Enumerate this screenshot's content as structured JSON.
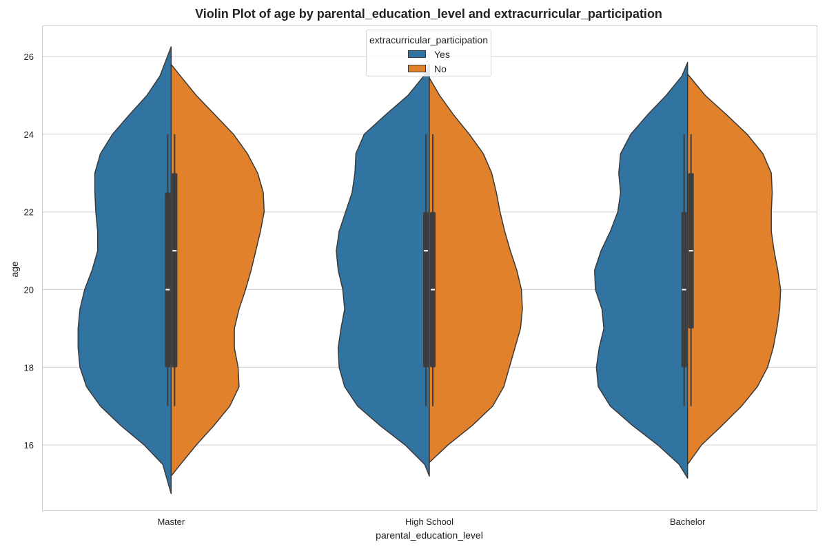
{
  "chart_data": {
    "type": "violin",
    "title": "Violin Plot of age by parental_education_level and extracurricular_participation",
    "xlabel": "parental_education_level",
    "ylabel": "age",
    "ylim": [
      14.3,
      26.8
    ],
    "yticks": [
      16,
      18,
      20,
      22,
      24,
      26
    ],
    "grid": true,
    "categories": [
      "Master",
      "High School",
      "Bachelor"
    ],
    "legend": {
      "title": "extracurricular_participation",
      "position": "top-center",
      "entries": [
        {
          "label": "Yes",
          "color": "#3274a1"
        },
        {
          "label": "No",
          "color": "#e1812c"
        }
      ]
    },
    "series": [
      {
        "name": "Yes",
        "color": "#3274a1",
        "violins": [
          {
            "category": "Master",
            "min_extent": 14.75,
            "max_extent": 26.25,
            "q1": 18,
            "median": 20,
            "q3": 22.5,
            "whisker_low": 17,
            "whisker_high": 24,
            "density": [
              [
                14.75,
                0.0
              ],
              [
                15.5,
                0.09
              ],
              [
                16.0,
                0.29
              ],
              [
                16.5,
                0.54
              ],
              [
                17.0,
                0.76
              ],
              [
                17.5,
                0.91
              ],
              [
                18.0,
                0.98
              ],
              [
                18.5,
                1.0
              ],
              [
                19.0,
                1.0
              ],
              [
                19.5,
                0.98
              ],
              [
                20.0,
                0.93
              ],
              [
                20.5,
                0.85
              ],
              [
                21.0,
                0.79
              ],
              [
                21.5,
                0.79
              ],
              [
                22.0,
                0.81
              ],
              [
                22.5,
                0.82
              ],
              [
                23.0,
                0.82
              ],
              [
                23.5,
                0.76
              ],
              [
                24.0,
                0.63
              ],
              [
                24.5,
                0.45
              ],
              [
                25.0,
                0.26
              ],
              [
                25.5,
                0.12
              ],
              [
                26.0,
                0.04
              ],
              [
                26.25,
                0.0
              ]
            ]
          },
          {
            "category": "High School",
            "min_extent": 15.2,
            "max_extent": 25.8,
            "q1": 18,
            "median": 21,
            "q3": 22,
            "whisker_low": 17,
            "whisker_high": 24,
            "density": [
              [
                15.2,
                0.0
              ],
              [
                15.5,
                0.05
              ],
              [
                16.0,
                0.26
              ],
              [
                16.5,
                0.53
              ],
              [
                17.0,
                0.77
              ],
              [
                17.5,
                0.91
              ],
              [
                18.0,
                0.97
              ],
              [
                18.5,
                0.98
              ],
              [
                19.0,
                0.95
              ],
              [
                19.5,
                0.91
              ],
              [
                20.0,
                0.93
              ],
              [
                20.5,
                0.98
              ],
              [
                21.0,
                1.0
              ],
              [
                21.5,
                0.97
              ],
              [
                22.0,
                0.9
              ],
              [
                22.5,
                0.83
              ],
              [
                23.0,
                0.8
              ],
              [
                23.5,
                0.79
              ],
              [
                24.0,
                0.7
              ],
              [
                24.5,
                0.47
              ],
              [
                25.0,
                0.23
              ],
              [
                25.5,
                0.06
              ],
              [
                25.8,
                0.0
              ]
            ]
          },
          {
            "category": "Bachelor",
            "min_extent": 15.15,
            "max_extent": 25.85,
            "q1": 18,
            "median": 20,
            "q3": 22,
            "whisker_low": 17,
            "whisker_high": 24,
            "density": [
              [
                15.15,
                0.0
              ],
              [
                15.5,
                0.09
              ],
              [
                16.0,
                0.32
              ],
              [
                16.5,
                0.59
              ],
              [
                17.0,
                0.83
              ],
              [
                17.5,
                0.96
              ],
              [
                18.0,
                0.98
              ],
              [
                18.5,
                0.95
              ],
              [
                19.0,
                0.9
              ],
              [
                19.5,
                0.92
              ],
              [
                20.0,
                0.99
              ],
              [
                20.5,
                1.0
              ],
              [
                21.0,
                0.93
              ],
              [
                21.5,
                0.83
              ],
              [
                22.0,
                0.75
              ],
              [
                22.5,
                0.72
              ],
              [
                23.0,
                0.74
              ],
              [
                23.5,
                0.72
              ],
              [
                24.0,
                0.61
              ],
              [
                24.5,
                0.43
              ],
              [
                25.0,
                0.23
              ],
              [
                25.5,
                0.06
              ],
              [
                25.85,
                0.0
              ]
            ]
          }
        ]
      },
      {
        "name": "No",
        "color": "#e1812c",
        "violins": [
          {
            "category": "Master",
            "min_extent": 15.2,
            "max_extent": 25.8,
            "q1": 18,
            "median": 21,
            "q3": 23,
            "whisker_low": 17,
            "whisker_high": 24,
            "density": [
              [
                15.2,
                0.0
              ],
              [
                15.5,
                0.1
              ],
              [
                16.0,
                0.27
              ],
              [
                16.5,
                0.46
              ],
              [
                17.0,
                0.63
              ],
              [
                17.5,
                0.73
              ],
              [
                18.0,
                0.72
              ],
              [
                18.5,
                0.68
              ],
              [
                19.0,
                0.68
              ],
              [
                19.5,
                0.73
              ],
              [
                20.0,
                0.8
              ],
              [
                20.5,
                0.86
              ],
              [
                21.0,
                0.91
              ],
              [
                21.5,
                0.96
              ],
              [
                22.0,
                1.0
              ],
              [
                22.5,
                0.99
              ],
              [
                23.0,
                0.93
              ],
              [
                23.5,
                0.82
              ],
              [
                24.0,
                0.67
              ],
              [
                24.5,
                0.47
              ],
              [
                25.0,
                0.27
              ],
              [
                25.5,
                0.1
              ],
              [
                25.8,
                0.0
              ]
            ]
          },
          {
            "category": "High School",
            "min_extent": 15.55,
            "max_extent": 25.45,
            "q1": 18,
            "median": 20,
            "q3": 22,
            "whisker_low": 17,
            "whisker_high": 24,
            "density": [
              [
                15.55,
                0.0
              ],
              [
                16.0,
                0.2
              ],
              [
                16.5,
                0.46
              ],
              [
                17.0,
                0.68
              ],
              [
                17.5,
                0.8
              ],
              [
                18.0,
                0.86
              ],
              [
                18.5,
                0.92
              ],
              [
                19.0,
                0.98
              ],
              [
                19.5,
                1.0
              ],
              [
                20.0,
                0.99
              ],
              [
                20.5,
                0.94
              ],
              [
                21.0,
                0.87
              ],
              [
                21.5,
                0.81
              ],
              [
                22.0,
                0.76
              ],
              [
                22.5,
                0.72
              ],
              [
                23.0,
                0.67
              ],
              [
                23.5,
                0.58
              ],
              [
                24.0,
                0.43
              ],
              [
                24.5,
                0.26
              ],
              [
                25.0,
                0.11
              ],
              [
                25.45,
                0.0
              ]
            ]
          },
          {
            "category": "Bachelor",
            "min_extent": 15.5,
            "max_extent": 25.55,
            "q1": 19,
            "median": 21,
            "q3": 23,
            "whisker_low": 17,
            "whisker_high": 24,
            "density": [
              [
                15.5,
                0.0
              ],
              [
                16.0,
                0.15
              ],
              [
                16.5,
                0.37
              ],
              [
                17.0,
                0.58
              ],
              [
                17.5,
                0.75
              ],
              [
                18.0,
                0.86
              ],
              [
                18.5,
                0.92
              ],
              [
                19.0,
                0.96
              ],
              [
                19.5,
                0.99
              ],
              [
                20.0,
                1.0
              ],
              [
                20.5,
                0.97
              ],
              [
                21.0,
                0.93
              ],
              [
                21.5,
                0.9
              ],
              [
                22.0,
                0.9
              ],
              [
                22.5,
                0.91
              ],
              [
                23.0,
                0.9
              ],
              [
                23.5,
                0.81
              ],
              [
                24.0,
                0.64
              ],
              [
                24.5,
                0.42
              ],
              [
                25.0,
                0.19
              ],
              [
                25.55,
                0.0
              ]
            ]
          }
        ]
      }
    ]
  }
}
